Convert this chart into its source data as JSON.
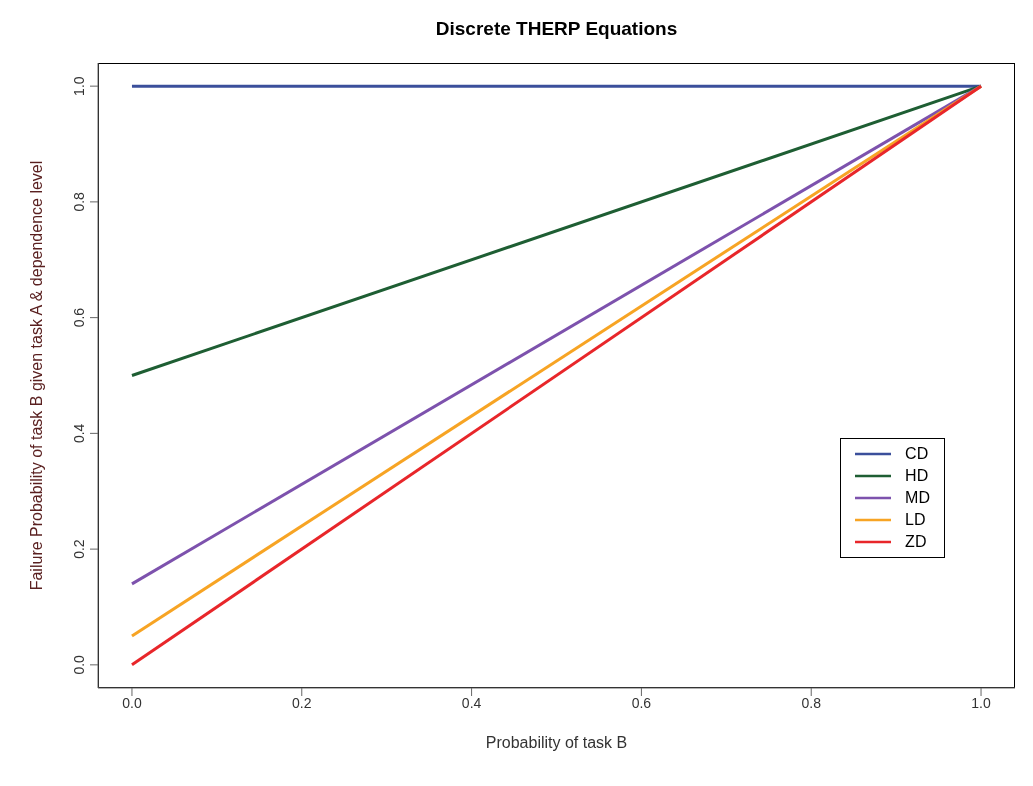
{
  "chart_data": {
    "type": "line",
    "title": "Discrete THERP Equations",
    "xlabel": "Probability of task B",
    "ylabel": "Failure Probability of task B given task A & dependence level",
    "xlim": [
      -0.04,
      1.04
    ],
    "ylim": [
      -0.04,
      1.04
    ],
    "xticks": [
      {
        "value": 0,
        "label": "0.0"
      },
      {
        "value": 0.2,
        "label": "0.2"
      },
      {
        "value": 0.4,
        "label": "0.4"
      },
      {
        "value": 0.6,
        "label": "0.6"
      },
      {
        "value": 0.8,
        "label": "0.8"
      },
      {
        "value": 1,
        "label": "1.0"
      }
    ],
    "yticks": [
      {
        "value": 0,
        "label": "0.0"
      },
      {
        "value": 0.2,
        "label": "0.2"
      },
      {
        "value": 0.4,
        "label": "0.4"
      },
      {
        "value": 0.6,
        "label": "0.6"
      },
      {
        "value": 0.8,
        "label": "0.8"
      },
      {
        "value": 1,
        "label": "1.0"
      }
    ],
    "legend": "right",
    "x": [
      0,
      1
    ],
    "series": [
      {
        "name": "CD",
        "color": "#3b4f9b",
        "values": [
          1,
          1
        ]
      },
      {
        "name": "HD",
        "color": "#1e5e33",
        "values": [
          0.5,
          1
        ]
      },
      {
        "name": "MD",
        "color": "#7d52ad",
        "values": [
          0.14,
          1
        ]
      },
      {
        "name": "LD",
        "color": "#f7a424",
        "values": [
          0.05,
          1
        ]
      },
      {
        "name": "ZD",
        "color": "#e8262a",
        "values": [
          0,
          1
        ]
      }
    ]
  }
}
